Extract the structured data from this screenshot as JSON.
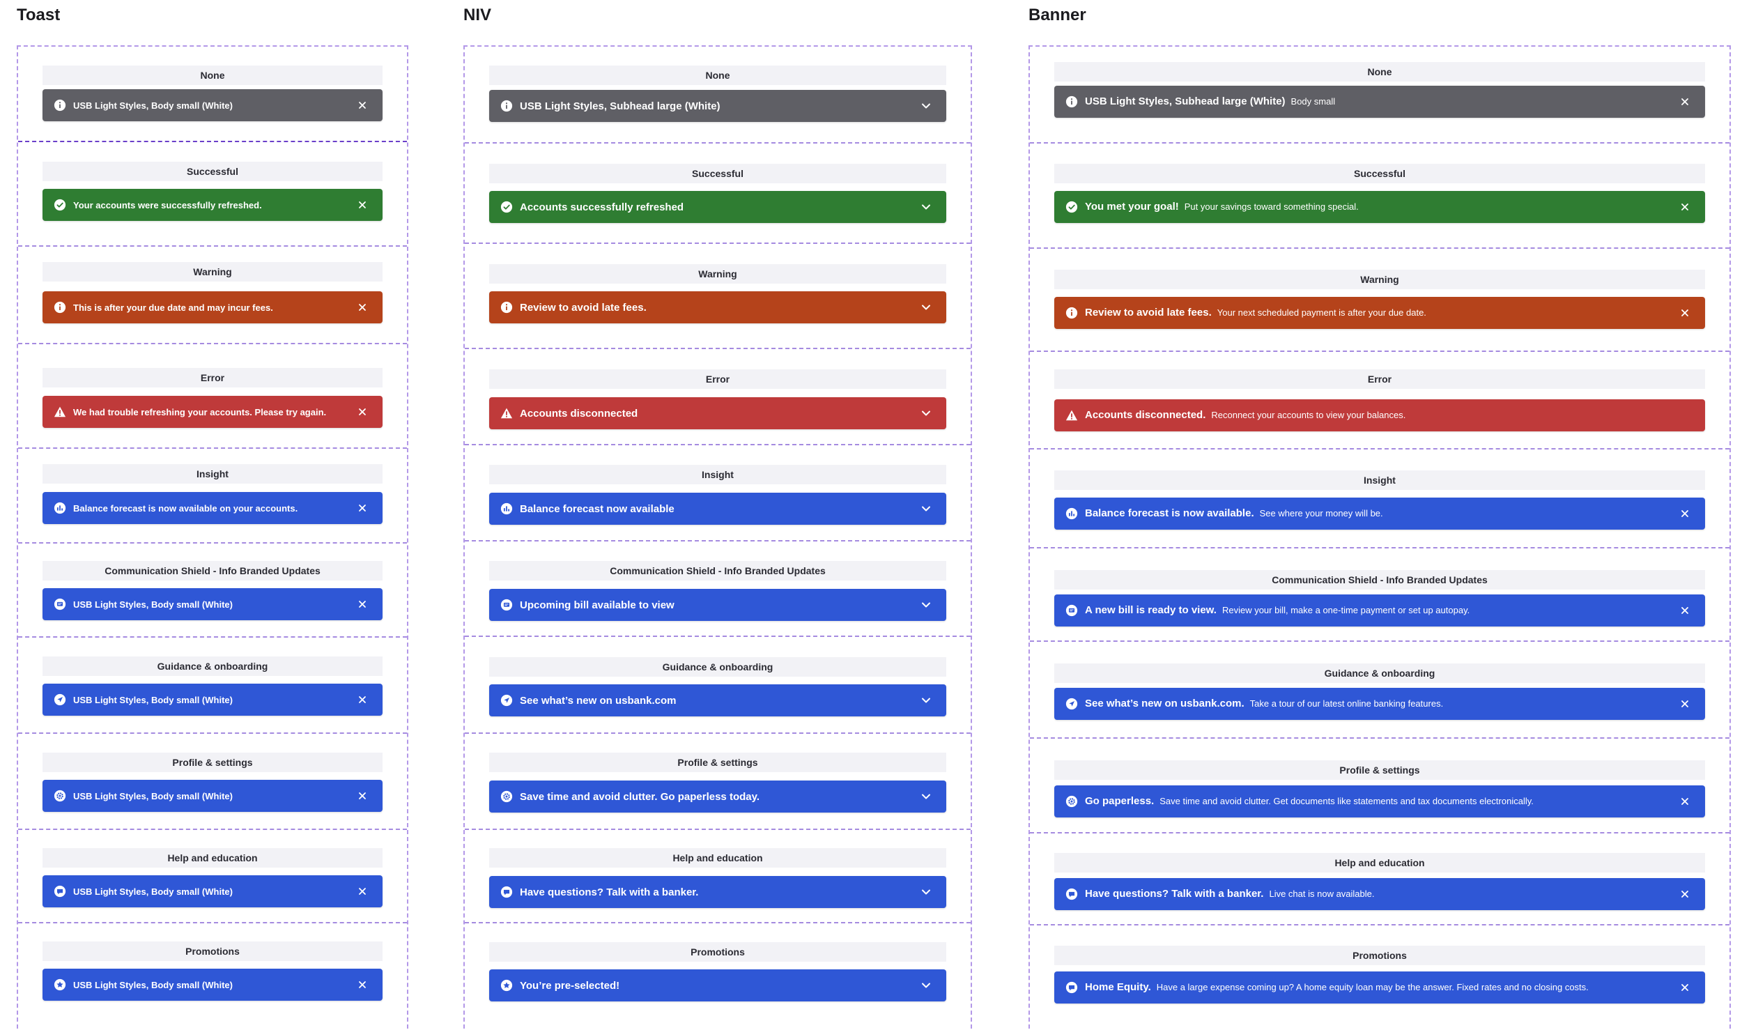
{
  "columns": [
    {
      "id": "toast",
      "title": "Toast",
      "action_icon": "close-icon",
      "items": [
        {
          "label": "None",
          "variant": "none",
          "icon": "info-icon",
          "title": "USB Light Styles, Body small (White)"
        },
        {
          "label": "Successful",
          "variant": "success",
          "icon": "check-circle-icon",
          "title": "Your accounts were successfully refreshed."
        },
        {
          "label": "Warning",
          "variant": "warning",
          "icon": "info-icon",
          "title": "This is after your due date and may incur fees."
        },
        {
          "label": "Error",
          "variant": "error",
          "icon": "warning-triangle-icon",
          "title": "We had trouble refreshing your accounts. Please try again."
        },
        {
          "label": "Insight",
          "variant": "info",
          "icon": "chart-icon",
          "title": "Balance forecast is now available on your accounts."
        },
        {
          "label": "Communication Shield - Info Branded Updates",
          "variant": "info",
          "icon": "message-icon",
          "title": "USB Light Styles, Body small (White)"
        },
        {
          "label": "Guidance & onboarding",
          "variant": "info",
          "icon": "navigation-icon",
          "title": "USB Light Styles, Body small (White)"
        },
        {
          "label": "Profile & settings",
          "variant": "info",
          "icon": "gear-icon",
          "title": "USB Light Styles, Body small (White)"
        },
        {
          "label": "Help and education",
          "variant": "info",
          "icon": "chat-icon",
          "title": "USB Light Styles, Body small (White)"
        },
        {
          "label": "Promotions",
          "variant": "info",
          "icon": "star-icon",
          "title": "USB Light Styles, Body small (White)"
        }
      ]
    },
    {
      "id": "niv",
      "title": "NIV",
      "action_icon": "chevron-down-icon",
      "items": [
        {
          "label": "None",
          "variant": "none",
          "icon": "info-icon",
          "title": "USB Light Styles, Subhead large (White)"
        },
        {
          "label": "Successful",
          "variant": "success",
          "icon": "check-circle-icon",
          "title": "Accounts successfully refreshed"
        },
        {
          "label": "Warning",
          "variant": "warning",
          "icon": "info-icon",
          "title": "Review to avoid late fees."
        },
        {
          "label": "Error",
          "variant": "error",
          "icon": "warning-triangle-icon",
          "title": "Accounts disconnected"
        },
        {
          "label": "Insight",
          "variant": "info",
          "icon": "chart-icon",
          "title": "Balance forecast now available"
        },
        {
          "label": "Communication Shield - Info Branded Updates",
          "variant": "info",
          "icon": "message-icon",
          "title": "Upcoming bill available to view"
        },
        {
          "label": "Guidance & onboarding",
          "variant": "info",
          "icon": "navigation-icon",
          "title": "See what’s new on usbank.com"
        },
        {
          "label": "Profile & settings",
          "variant": "info",
          "icon": "gear-icon",
          "title": "Save time and avoid clutter. Go paperless today."
        },
        {
          "label": "Help and education",
          "variant": "info",
          "icon": "chat-icon",
          "title": "Have questions? Talk with a banker."
        },
        {
          "label": "Promotions",
          "variant": "info",
          "icon": "star-icon",
          "title": "You’re pre-selected!"
        }
      ]
    },
    {
      "id": "banner",
      "title": "Banner",
      "action_icon": "close-icon",
      "items": [
        {
          "label": "None",
          "variant": "none",
          "icon": "info-icon",
          "title": "USB Light Styles, Subhead large (White)",
          "subtitle": "Body small",
          "closable": true
        },
        {
          "label": "Successful",
          "variant": "success",
          "icon": "check-circle-icon",
          "title": "You met your goal!",
          "subtitle": "Put your savings toward something special.",
          "closable": true
        },
        {
          "label": "Warning",
          "variant": "warning",
          "icon": "info-icon",
          "title": "Review to avoid late fees.",
          "subtitle": "Your next scheduled payment is after your due date.",
          "closable": true
        },
        {
          "label": "Error",
          "variant": "error",
          "icon": "warning-triangle-icon",
          "title": "Accounts disconnected.",
          "subtitle": "Reconnect your accounts to view your balances.",
          "closable": false
        },
        {
          "label": "Insight",
          "variant": "info",
          "icon": "chart-icon",
          "title": "Balance forecast is now available.",
          "subtitle": "See where your money will be.",
          "closable": true
        },
        {
          "label": "Communication Shield - Info Branded Updates",
          "variant": "info",
          "icon": "message-icon",
          "title": "A new bill is ready to view.",
          "subtitle": "Review your bill, make a one-time payment or set up autopay.",
          "closable": true
        },
        {
          "label": "Guidance & onboarding",
          "variant": "info",
          "icon": "navigation-icon",
          "title": "See what’s new on usbank.com.",
          "subtitle": "Take a tour of our latest online banking features.",
          "closable": true
        },
        {
          "label": "Profile & settings",
          "variant": "info",
          "icon": "gear-icon",
          "title": "Go paperless.",
          "subtitle": "Save time and avoid clutter. Get documents like statements and tax documents electronically.",
          "closable": true
        },
        {
          "label": "Help and education",
          "variant": "info",
          "icon": "chat-icon",
          "title": "Have questions? Talk with a banker.",
          "subtitle": "Live chat is now available.",
          "closable": true
        },
        {
          "label": "Promotions",
          "variant": "info",
          "icon": "chat-icon",
          "title": "Home Equity.",
          "subtitle": "Have a large expense coming up? A home equity loan may be the answer. Fixed rates and no closing costs.",
          "closable": true
        }
      ]
    }
  ]
}
